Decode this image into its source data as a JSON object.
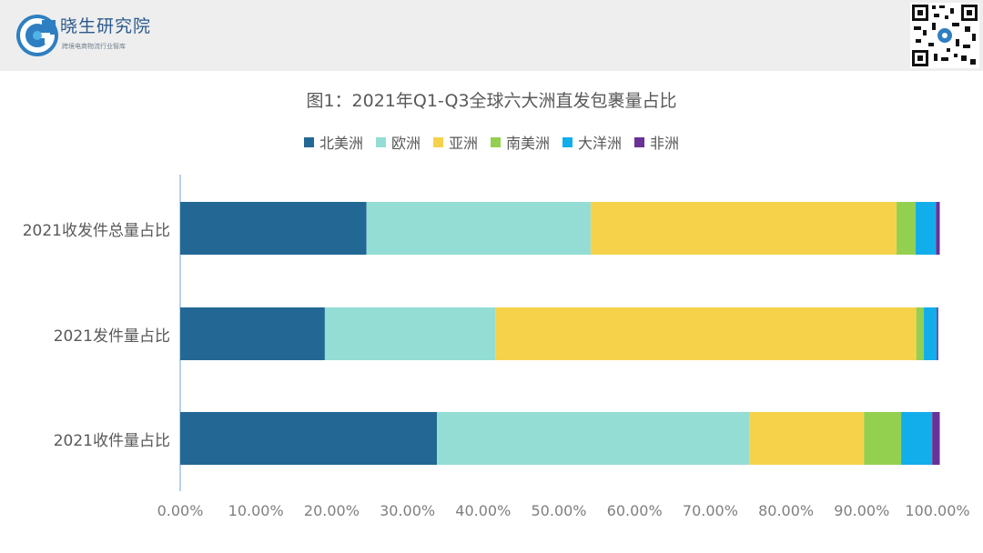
{
  "header": {
    "logo_name": "晓生研究院",
    "logo_tagline": "跨境电商物流行业智库",
    "logo_icon": "g-letter-logo-icon",
    "qr_icon": "qr-code-icon"
  },
  "chart_data": {
    "type": "bar",
    "orientation": "horizontal",
    "stacked": true,
    "normalized": true,
    "title": "图1：2021年Q1-Q3全球六大洲直发包裹量占比",
    "xlabel": "",
    "ylabel": "",
    "xlim": [
      0,
      1
    ],
    "x_ticks": [
      "0.00%",
      "10.00%",
      "20.00%",
      "30.00%",
      "40.00%",
      "50.00%",
      "60.00%",
      "70.00%",
      "80.00%",
      "90.00%",
      "100.00%"
    ],
    "legend_position": "top",
    "grid": false,
    "categories": [
      "2021收发件总量占比",
      "2021发件量占比",
      "2021收件量占比"
    ],
    "series": [
      {
        "name": "北美洲",
        "color": "#236894",
        "values": [
          0.246,
          0.191,
          0.339
        ]
      },
      {
        "name": "欧洲",
        "color": "#93ddd4",
        "values": [
          0.296,
          0.225,
          0.413
        ]
      },
      {
        "name": "亚洲",
        "color": "#f6d24b",
        "values": [
          0.404,
          0.556,
          0.151
        ]
      },
      {
        "name": "南美洲",
        "color": "#93d04f",
        "values": [
          0.025,
          0.01,
          0.049
        ]
      },
      {
        "name": "大洋洲",
        "color": "#12aeeb",
        "values": [
          0.027,
          0.017,
          0.041
        ]
      },
      {
        "name": "非洲",
        "color": "#6a3197",
        "values": [
          0.005,
          0.002,
          0.01
        ]
      }
    ]
  }
}
